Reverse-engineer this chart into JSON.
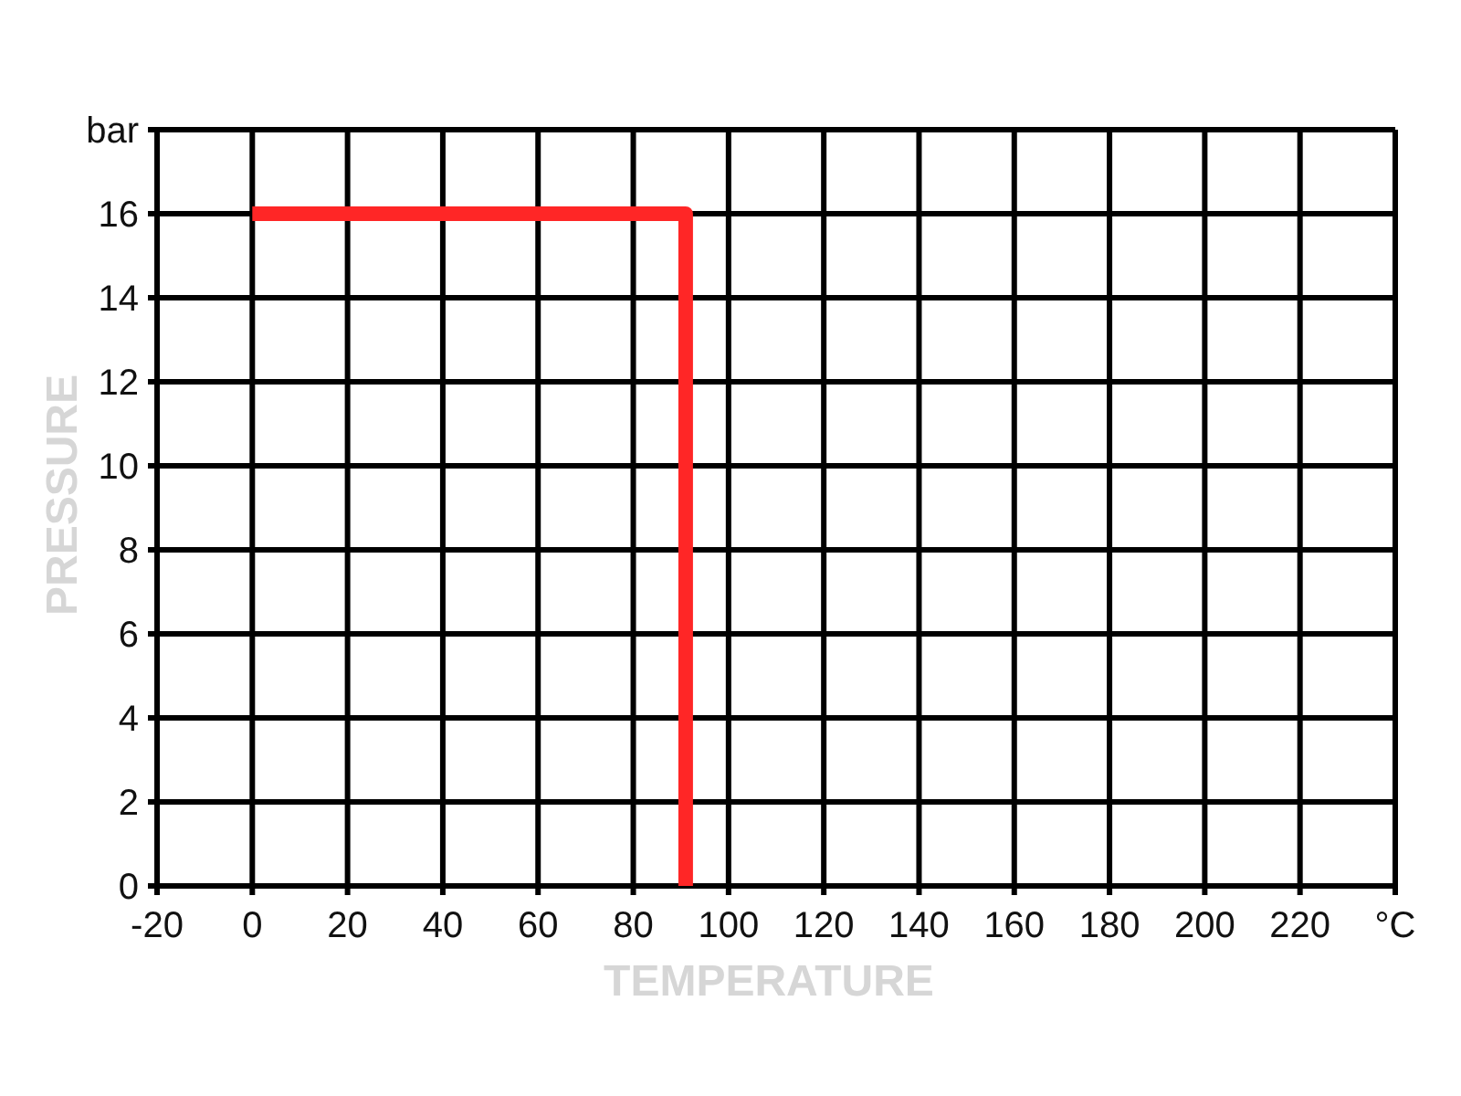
{
  "chart_data": {
    "type": "step",
    "xlabel": "TEMPERATURE",
    "ylabel": "PRESSURE",
    "xlim": [
      -20,
      240
    ],
    "ylim": [
      0,
      18
    ],
    "xticks": [
      -20,
      0,
      20,
      40,
      60,
      80,
      100,
      120,
      140,
      160,
      180,
      200,
      220,
      {
        "value": 240,
        "label": "°C"
      }
    ],
    "yticks": [
      0,
      2,
      4,
      6,
      8,
      10,
      12,
      14,
      16,
      {
        "value": 18,
        "label": "bar"
      }
    ],
    "grid": true,
    "x": [
      0,
      91
    ],
    "series": [
      {
        "color": "#ff2626",
        "values": [
          16,
          0
        ]
      }
    ]
  }
}
